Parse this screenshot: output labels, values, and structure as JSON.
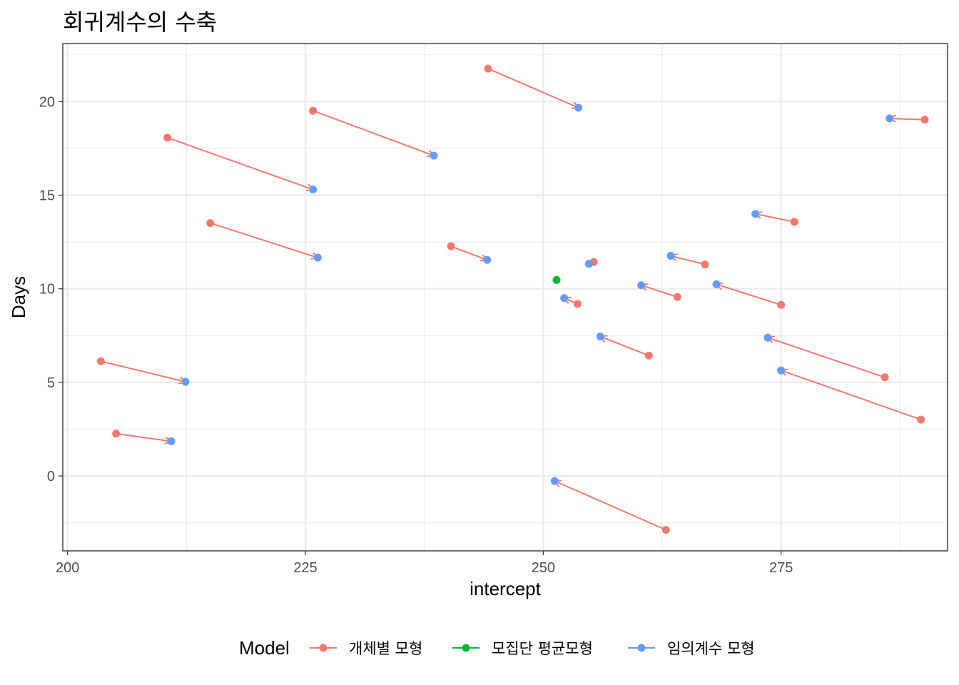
{
  "chart_data": {
    "type": "scatter",
    "title": "회귀계수의 수축",
    "xlabel": "intercept",
    "ylabel": "Days",
    "xlim": [
      199.5,
      292.5
    ],
    "ylim": [
      -4.0,
      23.1
    ],
    "xticks": [
      200,
      225,
      250,
      275
    ],
    "yticks": [
      0,
      5,
      10,
      15,
      20
    ],
    "xminor": [
      212.5,
      237.5,
      262.5,
      287.5
    ],
    "yminor": [
      -2.5,
      2.5,
      7.5,
      12.5,
      17.5,
      22.5
    ],
    "grid": true,
    "legend": {
      "title": "Model",
      "position": "bottom",
      "entries": [
        {
          "label": "개체별 모형",
          "color": "#F8766D"
        },
        {
          "label": "모집단 평균모형",
          "color": "#00BA38"
        },
        {
          "label": "임의계수 모형",
          "color": "#619CFF"
        }
      ]
    },
    "series": [
      {
        "name": "개체별 모형",
        "color": "#F8766D",
        "points": [
          {
            "x": 244.2,
            "y": 21.76
          },
          {
            "x": 290.1,
            "y": 19.03
          },
          {
            "x": 225.8,
            "y": 19.51
          },
          {
            "x": 210.5,
            "y": 18.07
          },
          {
            "x": 215.0,
            "y": 13.51
          },
          {
            "x": 276.4,
            "y": 13.57
          },
          {
            "x": 240.3,
            "y": 12.27
          },
          {
            "x": 267.0,
            "y": 11.3
          },
          {
            "x": 255.3,
            "y": 11.43
          },
          {
            "x": 264.1,
            "y": 9.56
          },
          {
            "x": 275.0,
            "y": 9.14
          },
          {
            "x": 253.6,
            "y": 9.19
          },
          {
            "x": 261.1,
            "y": 6.43
          },
          {
            "x": 285.9,
            "y": 5.27
          },
          {
            "x": 203.5,
            "y": 6.13
          },
          {
            "x": 289.7,
            "y": 3.01
          },
          {
            "x": 205.1,
            "y": 2.26
          },
          {
            "x": 262.9,
            "y": -2.88
          }
        ]
      },
      {
        "name": "모집단 평균모형",
        "color": "#00BA38",
        "points": [
          {
            "x": 251.4,
            "y": 10.47
          }
        ]
      },
      {
        "name": "임의계수 모형",
        "color": "#619CFF",
        "points": [
          {
            "x": 253.7,
            "y": 19.67
          },
          {
            "x": 286.4,
            "y": 19.1
          },
          {
            "x": 238.5,
            "y": 17.11
          },
          {
            "x": 225.8,
            "y": 15.3
          },
          {
            "x": 226.3,
            "y": 11.66
          },
          {
            "x": 272.3,
            "y": 14.0
          },
          {
            "x": 244.1,
            "y": 11.54
          },
          {
            "x": 263.4,
            "y": 11.76
          },
          {
            "x": 254.8,
            "y": 11.33
          },
          {
            "x": 260.3,
            "y": 10.19
          },
          {
            "x": 268.2,
            "y": 10.24
          },
          {
            "x": 252.2,
            "y": 9.5
          },
          {
            "x": 256.0,
            "y": 7.45
          },
          {
            "x": 273.6,
            "y": 7.39
          },
          {
            "x": 212.4,
            "y": 5.03
          },
          {
            "x": 275.0,
            "y": 5.64
          },
          {
            "x": 210.9,
            "y": 1.85
          },
          {
            "x": 251.2,
            "y": -0.27
          }
        ]
      }
    ]
  }
}
